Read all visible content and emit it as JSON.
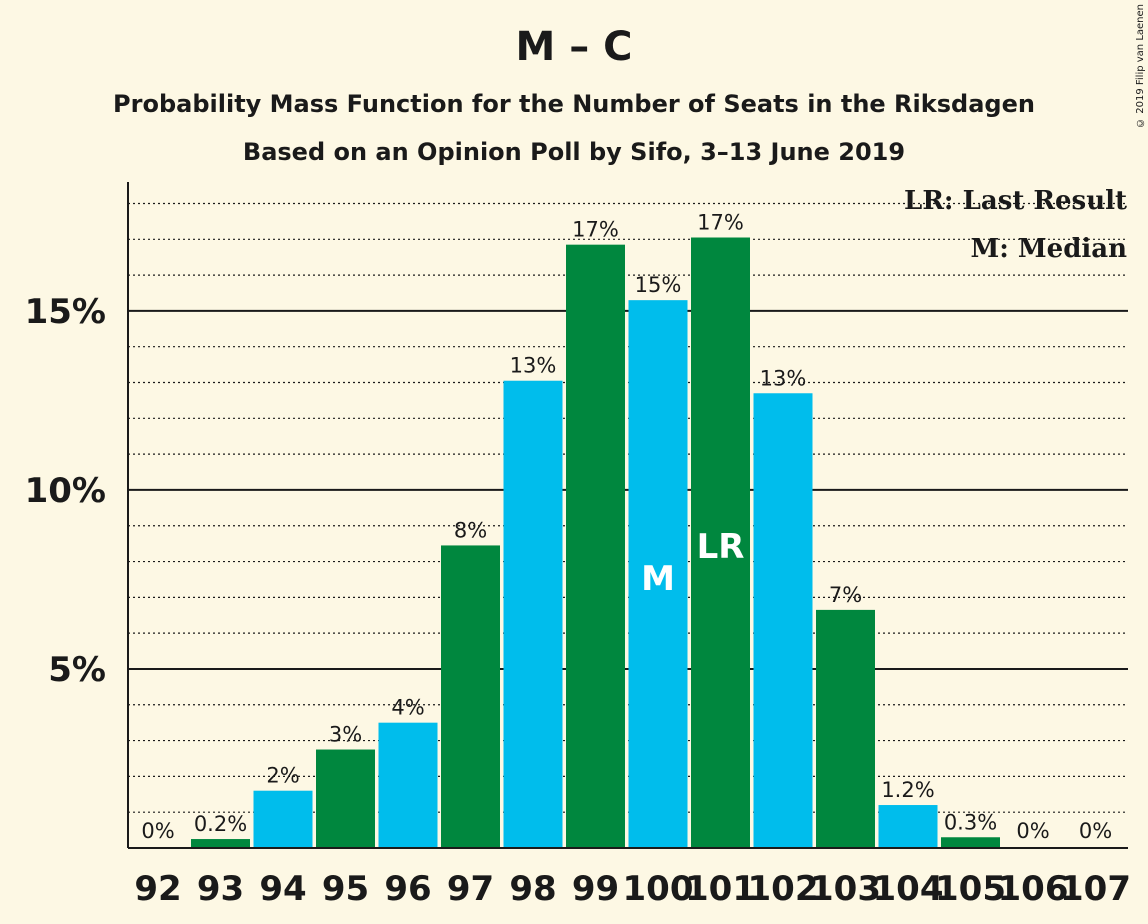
{
  "title": "M – C",
  "subtitle1": "Probability Mass Function for the Number of Seats in the Riksdagen",
  "subtitle2": "Based on an Opinion Poll by Sifo, 3–13 June 2019",
  "copyright": "© 2019 Filip van Laenen",
  "legend": [
    "LR: Last Result",
    "M: Median"
  ],
  "colors": {
    "green": "#00873e",
    "blue": "#00bdec",
    "background": "#fdf8e4"
  },
  "chart_data": {
    "type": "bar",
    "categories": [
      "92",
      "93",
      "94",
      "95",
      "96",
      "97",
      "98",
      "99",
      "100",
      "101",
      "102",
      "103",
      "104",
      "105",
      "106",
      "107"
    ],
    "values": [
      0,
      0.25,
      1.6,
      2.75,
      3.5,
      8.45,
      13.05,
      16.85,
      15.3,
      17.05,
      12.7,
      6.65,
      1.2,
      0.3,
      0,
      0
    ],
    "labels": [
      "0%",
      "0.2%",
      "2%",
      "3%",
      "4%",
      "8%",
      "13%",
      "17%",
      "15%",
      "17%",
      "13%",
      "7%",
      "1.2%",
      "0.3%",
      "0%",
      "0%"
    ],
    "bar_colors": [
      "green",
      "green",
      "blue",
      "green",
      "blue",
      "green",
      "blue",
      "green",
      "blue",
      "green",
      "blue",
      "green",
      "blue",
      "green",
      "blue",
      "green"
    ],
    "markers": {
      "100": "M",
      "101": "LR"
    },
    "y_ticks": [
      {
        "value": 5,
        "label": "5%"
      },
      {
        "value": 10,
        "label": "10%"
      },
      {
        "value": 15,
        "label": "15%"
      }
    ],
    "ylim": [
      0,
      18.6
    ],
    "grid": true,
    "legend_position": "top-right"
  }
}
